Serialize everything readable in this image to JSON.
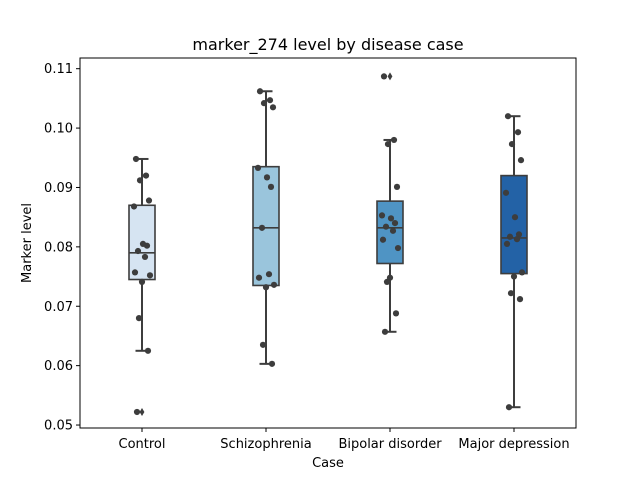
{
  "chart_data": {
    "type": "box",
    "title": "marker_274 level by disease case",
    "xlabel": "Case",
    "ylabel": "Marker level",
    "ylim": [
      0.0495,
      0.1118
    ],
    "yticks": [
      0.05,
      0.06,
      0.07,
      0.08,
      0.09,
      0.1,
      0.11
    ],
    "ytick_labels": [
      "0.05",
      "0.06",
      "0.07",
      "0.08",
      "0.09",
      "0.10",
      "0.11"
    ],
    "categories": [
      "Control",
      "Schizophrenia",
      "Bipolar disorder",
      "Major depression"
    ],
    "colors": [
      "#d6e4f2",
      "#9ac5dc",
      "#4f94c4",
      "#2362a6"
    ],
    "grid": false,
    "legend": "none",
    "boxes": [
      {
        "q1": 0.0745,
        "median": 0.079,
        "q3": 0.087,
        "whisker_low": 0.0625,
        "whisker_high": 0.0948,
        "outliers": [
          0.0522
        ]
      },
      {
        "q1": 0.0735,
        "median": 0.0832,
        "q3": 0.0935,
        "whisker_low": 0.0603,
        "whisker_high": 0.1062,
        "outliers": []
      },
      {
        "q1": 0.0772,
        "median": 0.0832,
        "q3": 0.0877,
        "whisker_low": 0.0657,
        "whisker_high": 0.098,
        "outliers": [
          0.1087
        ]
      },
      {
        "q1": 0.0755,
        "median": 0.0815,
        "q3": 0.092,
        "whisker_low": 0.053,
        "whisker_high": 0.102,
        "outliers": []
      }
    ],
    "points": [
      [
        0.0948,
        0.092,
        0.0912,
        0.0878,
        0.0868,
        0.0805,
        0.0802,
        0.0793,
        0.0783,
        0.0757,
        0.0752,
        0.0741,
        0.068,
        0.0625,
        0.0522
      ],
      [
        0.1062,
        0.1047,
        0.1042,
        0.1035,
        0.0933,
        0.0917,
        0.0901,
        0.0832,
        0.0754,
        0.0748,
        0.0736,
        0.0732,
        0.0635,
        0.0603
      ],
      [
        0.1087,
        0.098,
        0.0973,
        0.0901,
        0.0853,
        0.0848,
        0.084,
        0.0834,
        0.0827,
        0.0812,
        0.0798,
        0.0748,
        0.0741,
        0.0688,
        0.0657
      ],
      [
        0.102,
        0.0993,
        0.0973,
        0.0946,
        0.0891,
        0.085,
        0.0821,
        0.0817,
        0.0813,
        0.0805,
        0.0757,
        0.075,
        0.0722,
        0.0712,
        0.053
      ]
    ]
  }
}
